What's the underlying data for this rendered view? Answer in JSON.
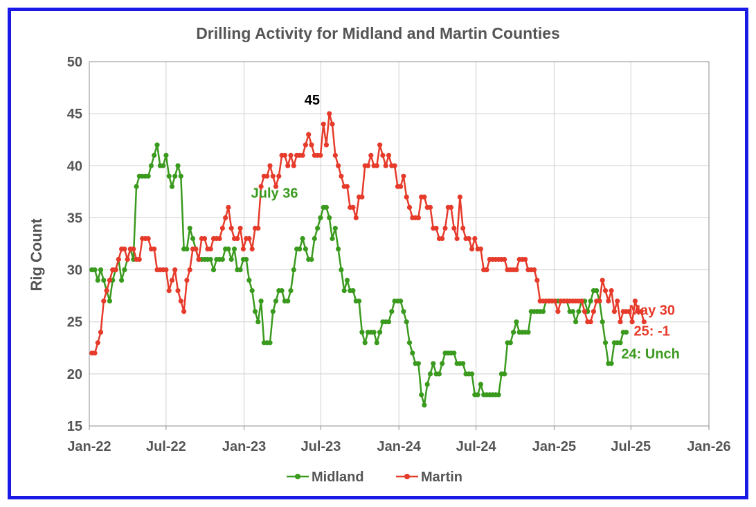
{
  "chart_data": {
    "type": "line",
    "title": "Drilling Activity for Midland and Martin Counties",
    "xlabel": "",
    "ylabel": "Rig Count",
    "xlim": [
      "2022-01-01",
      "2026-01-01"
    ],
    "ylim": [
      15,
      50
    ],
    "y_ticks": [
      15,
      20,
      25,
      30,
      35,
      40,
      45,
      50
    ],
    "x_tick_labels": [
      "Jan-22",
      "Jul-22",
      "Jan-23",
      "Jul-23",
      "Jan-24",
      "Jul-24",
      "Jan-25",
      "Jul-25",
      "Jan-26"
    ],
    "x_tick_dates": [
      "2022-01-01",
      "2022-07-01",
      "2023-01-01",
      "2023-07-01",
      "2024-01-01",
      "2024-07-01",
      "2025-01-01",
      "2025-07-01",
      "2026-01-01"
    ],
    "grid": true,
    "legend": "bottom",
    "x_start": "2022-01-07",
    "x_step_days": 7,
    "series": [
      {
        "name": "Midland",
        "color": "#3a9a1e",
        "values": [
          30,
          30,
          29,
          30,
          29,
          28,
          27,
          29,
          30,
          31,
          29,
          30,
          31,
          32,
          31,
          38,
          39,
          39,
          39,
          39,
          40,
          41,
          42,
          40,
          40,
          41,
          39,
          38,
          39,
          40,
          39,
          32,
          32,
          34,
          33,
          32,
          31,
          31,
          31,
          31,
          31,
          30,
          31,
          31,
          31,
          32,
          32,
          31,
          32,
          30,
          30,
          31,
          31,
          29,
          28,
          26,
          25,
          27,
          23,
          23,
          23,
          26,
          27,
          28,
          28,
          27,
          27,
          28,
          30,
          32,
          32,
          33,
          32,
          31,
          31,
          33,
          34,
          35,
          36,
          36,
          35,
          33,
          34,
          32,
          30,
          28,
          29,
          28,
          28,
          27,
          27,
          24,
          23,
          24,
          24,
          24,
          23,
          24,
          25,
          25,
          25,
          26,
          27,
          27,
          27,
          26,
          25,
          23,
          22,
          21,
          21,
          18,
          17,
          19,
          20,
          21,
          20,
          20,
          21,
          22,
          22,
          22,
          22,
          21,
          21,
          21,
          20,
          20,
          20,
          18,
          18,
          19,
          18,
          18,
          18,
          18,
          18,
          18,
          20,
          20,
          23,
          23,
          24,
          25,
          24,
          24,
          24,
          24,
          26,
          26,
          26,
          26,
          26,
          27,
          27,
          27,
          27,
          27,
          27,
          27,
          27,
          26,
          26,
          25,
          26,
          27,
          27,
          26,
          27,
          28,
          28,
          27,
          25,
          23,
          21,
          21,
          23,
          23,
          23,
          24,
          24
        ]
      },
      {
        "name": "Martin",
        "color": "#e63a2a",
        "values": [
          22,
          22,
          23,
          24,
          27,
          28,
          29,
          30,
          30,
          31,
          32,
          32,
          31,
          32,
          32,
          31,
          31,
          33,
          33,
          33,
          32,
          32,
          30,
          30,
          30,
          30,
          28,
          29,
          30,
          28,
          27,
          26,
          29,
          30,
          32,
          32,
          31,
          33,
          33,
          32,
          32,
          33,
          33,
          33,
          34,
          35,
          36,
          34,
          33,
          33,
          34,
          32,
          33,
          33,
          32,
          34,
          34,
          38,
          39,
          39,
          40,
          39,
          38,
          39,
          41,
          41,
          40,
          41,
          40,
          41,
          41,
          41,
          42,
          43,
          42,
          41,
          41,
          41,
          44,
          42,
          45,
          44,
          41,
          40,
          39,
          38,
          38,
          36,
          36,
          35,
          37,
          37,
          40,
          40,
          41,
          40,
          40,
          42,
          41,
          40,
          41,
          40,
          40,
          38,
          38,
          39,
          37,
          36,
          35,
          35,
          35,
          37,
          37,
          36,
          36,
          34,
          34,
          33,
          33,
          34,
          36,
          36,
          34,
          33,
          37,
          34,
          33,
          33,
          32,
          33,
          32,
          32,
          30,
          30,
          31,
          31,
          31,
          31,
          31,
          31,
          30,
          30,
          30,
          30,
          31,
          31,
          31,
          30,
          30,
          30,
          29,
          27,
          27,
          27,
          27,
          27,
          27,
          26,
          27,
          27,
          27,
          27,
          27,
          27,
          27,
          27,
          26,
          25,
          25,
          26,
          27,
          27,
          29,
          28,
          27,
          28,
          26,
          27,
          25,
          26,
          26,
          26,
          25,
          27,
          26,
          26,
          25
        ]
      }
    ],
    "annotations": [
      {
        "text": "45",
        "color": "#000000",
        "x": "2023-06-30",
        "y": 45
      },
      {
        "text": "July 36",
        "color": "#3a9a1e",
        "x": "2023-06-23",
        "y": 36
      },
      {
        "text": "May 30",
        "color": "#e63a2a",
        "x": "2025-05-30",
        "y": 25
      },
      {
        "text": "25: -1",
        "color": "#e63a2a",
        "x": "2025-05-30",
        "y": 25
      },
      {
        "text": "24: Unch",
        "color": "#3a9a1e",
        "x": "2025-05-30",
        "y": 24
      }
    ]
  }
}
